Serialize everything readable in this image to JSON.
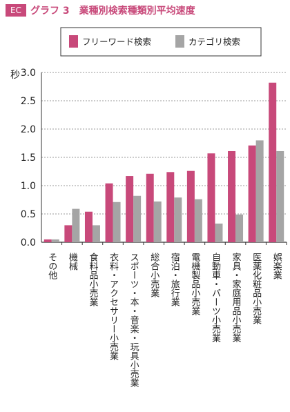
{
  "header": {
    "badge": "EC",
    "figure_number": "グラフ 3",
    "title": "業種別検索種類別平均速度"
  },
  "chart_data": {
    "type": "bar",
    "title": "業種別検索種類別平均速度",
    "ylabel": "秒",
    "xlabel": "",
    "ylim": [
      0,
      3.0
    ],
    "yticks": [
      "0.0",
      "0.5",
      "1.0",
      "1.5",
      "2.0",
      "2.5",
      "3.0"
    ],
    "grid": "horizontal-dashed",
    "legend_position": "top",
    "categories": [
      "その他",
      "機械",
      "食料品小売業",
      "衣料・アクセサリー小売業",
      "スポーツ・本・音楽・玩具小売業",
      "総合小売業",
      "宿泊・旅行業",
      "電機製品小売業",
      "自動車・パーツ小売業",
      "家具・家庭用品小売業",
      "医薬化粧品小売業",
      "娯楽業"
    ],
    "series": [
      {
        "name": "フリーワード検索",
        "color": "#c8497a",
        "values": [
          0.05,
          0.3,
          0.54,
          1.04,
          1.17,
          1.21,
          1.24,
          1.26,
          1.57,
          1.61,
          1.71,
          2.82
        ]
      },
      {
        "name": "カテゴリ検索",
        "color": "#a5a5a5",
        "values": [
          0.05,
          0.59,
          0.3,
          0.71,
          0.82,
          0.72,
          0.79,
          0.76,
          0.33,
          0.49,
          1.8,
          1.61
        ]
      }
    ]
  }
}
